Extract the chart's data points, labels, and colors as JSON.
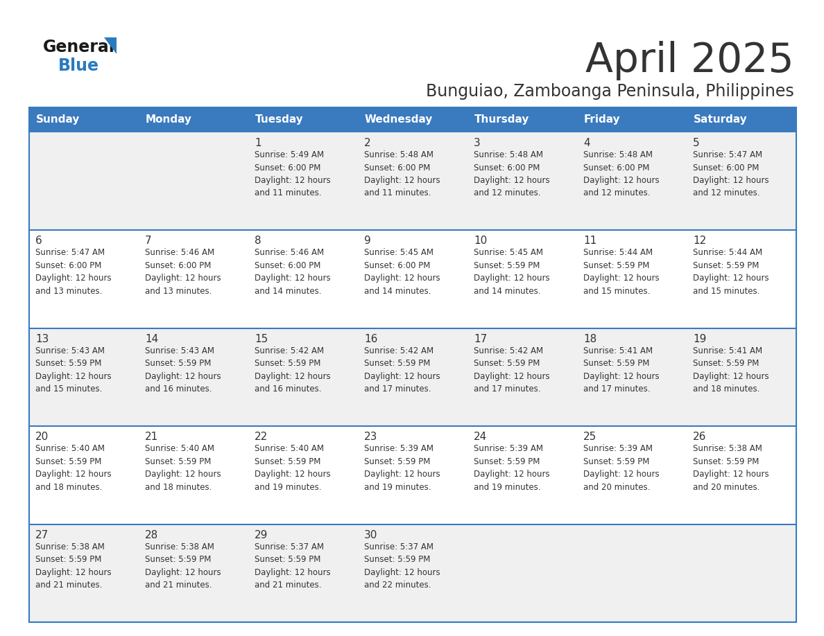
{
  "title": "April 2025",
  "subtitle": "Bunguiao, Zamboanga Peninsula, Philippines",
  "header_color": "#3a7abf",
  "header_text_color": "#ffffff",
  "cell_bg_even": "#f0f0f0",
  "cell_bg_odd": "#ffffff",
  "border_color": "#3a7abf",
  "text_color": "#333333",
  "days_of_week": [
    "Sunday",
    "Monday",
    "Tuesday",
    "Wednesday",
    "Thursday",
    "Friday",
    "Saturday"
  ],
  "weeks": [
    [
      {
        "day": "",
        "info": ""
      },
      {
        "day": "",
        "info": ""
      },
      {
        "day": "1",
        "info": "Sunrise: 5:49 AM\nSunset: 6:00 PM\nDaylight: 12 hours\nand 11 minutes."
      },
      {
        "day": "2",
        "info": "Sunrise: 5:48 AM\nSunset: 6:00 PM\nDaylight: 12 hours\nand 11 minutes."
      },
      {
        "day": "3",
        "info": "Sunrise: 5:48 AM\nSunset: 6:00 PM\nDaylight: 12 hours\nand 12 minutes."
      },
      {
        "day": "4",
        "info": "Sunrise: 5:48 AM\nSunset: 6:00 PM\nDaylight: 12 hours\nand 12 minutes."
      },
      {
        "day": "5",
        "info": "Sunrise: 5:47 AM\nSunset: 6:00 PM\nDaylight: 12 hours\nand 12 minutes."
      }
    ],
    [
      {
        "day": "6",
        "info": "Sunrise: 5:47 AM\nSunset: 6:00 PM\nDaylight: 12 hours\nand 13 minutes."
      },
      {
        "day": "7",
        "info": "Sunrise: 5:46 AM\nSunset: 6:00 PM\nDaylight: 12 hours\nand 13 minutes."
      },
      {
        "day": "8",
        "info": "Sunrise: 5:46 AM\nSunset: 6:00 PM\nDaylight: 12 hours\nand 14 minutes."
      },
      {
        "day": "9",
        "info": "Sunrise: 5:45 AM\nSunset: 6:00 PM\nDaylight: 12 hours\nand 14 minutes."
      },
      {
        "day": "10",
        "info": "Sunrise: 5:45 AM\nSunset: 5:59 PM\nDaylight: 12 hours\nand 14 minutes."
      },
      {
        "day": "11",
        "info": "Sunrise: 5:44 AM\nSunset: 5:59 PM\nDaylight: 12 hours\nand 15 minutes."
      },
      {
        "day": "12",
        "info": "Sunrise: 5:44 AM\nSunset: 5:59 PM\nDaylight: 12 hours\nand 15 minutes."
      }
    ],
    [
      {
        "day": "13",
        "info": "Sunrise: 5:43 AM\nSunset: 5:59 PM\nDaylight: 12 hours\nand 15 minutes."
      },
      {
        "day": "14",
        "info": "Sunrise: 5:43 AM\nSunset: 5:59 PM\nDaylight: 12 hours\nand 16 minutes."
      },
      {
        "day": "15",
        "info": "Sunrise: 5:42 AM\nSunset: 5:59 PM\nDaylight: 12 hours\nand 16 minutes."
      },
      {
        "day": "16",
        "info": "Sunrise: 5:42 AM\nSunset: 5:59 PM\nDaylight: 12 hours\nand 17 minutes."
      },
      {
        "day": "17",
        "info": "Sunrise: 5:42 AM\nSunset: 5:59 PM\nDaylight: 12 hours\nand 17 minutes."
      },
      {
        "day": "18",
        "info": "Sunrise: 5:41 AM\nSunset: 5:59 PM\nDaylight: 12 hours\nand 17 minutes."
      },
      {
        "day": "19",
        "info": "Sunrise: 5:41 AM\nSunset: 5:59 PM\nDaylight: 12 hours\nand 18 minutes."
      }
    ],
    [
      {
        "day": "20",
        "info": "Sunrise: 5:40 AM\nSunset: 5:59 PM\nDaylight: 12 hours\nand 18 minutes."
      },
      {
        "day": "21",
        "info": "Sunrise: 5:40 AM\nSunset: 5:59 PM\nDaylight: 12 hours\nand 18 minutes."
      },
      {
        "day": "22",
        "info": "Sunrise: 5:40 AM\nSunset: 5:59 PM\nDaylight: 12 hours\nand 19 minutes."
      },
      {
        "day": "23",
        "info": "Sunrise: 5:39 AM\nSunset: 5:59 PM\nDaylight: 12 hours\nand 19 minutes."
      },
      {
        "day": "24",
        "info": "Sunrise: 5:39 AM\nSunset: 5:59 PM\nDaylight: 12 hours\nand 19 minutes."
      },
      {
        "day": "25",
        "info": "Sunrise: 5:39 AM\nSunset: 5:59 PM\nDaylight: 12 hours\nand 20 minutes."
      },
      {
        "day": "26",
        "info": "Sunrise: 5:38 AM\nSunset: 5:59 PM\nDaylight: 12 hours\nand 20 minutes."
      }
    ],
    [
      {
        "day": "27",
        "info": "Sunrise: 5:38 AM\nSunset: 5:59 PM\nDaylight: 12 hours\nand 21 minutes."
      },
      {
        "day": "28",
        "info": "Sunrise: 5:38 AM\nSunset: 5:59 PM\nDaylight: 12 hours\nand 21 minutes."
      },
      {
        "day": "29",
        "info": "Sunrise: 5:37 AM\nSunset: 5:59 PM\nDaylight: 12 hours\nand 21 minutes."
      },
      {
        "day": "30",
        "info": "Sunrise: 5:37 AM\nSunset: 5:59 PM\nDaylight: 12 hours\nand 22 minutes."
      },
      {
        "day": "",
        "info": ""
      },
      {
        "day": "",
        "info": ""
      },
      {
        "day": "",
        "info": ""
      }
    ]
  ],
  "logo_general_color": "#1a1a1a",
  "logo_blue_color": "#2a7abf",
  "logo_triangle_color": "#2a7abf"
}
